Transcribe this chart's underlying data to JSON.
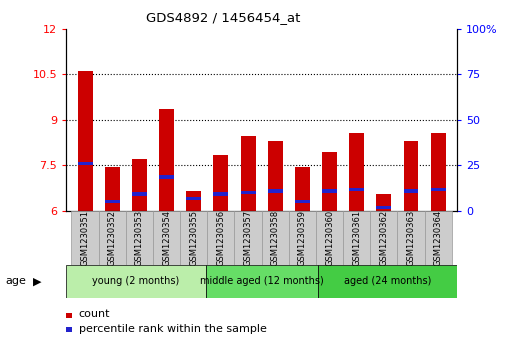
{
  "title": "GDS4892 / 1456454_at",
  "samples": [
    "GSM1230351",
    "GSM1230352",
    "GSM1230353",
    "GSM1230354",
    "GSM1230355",
    "GSM1230356",
    "GSM1230357",
    "GSM1230358",
    "GSM1230359",
    "GSM1230360",
    "GSM1230361",
    "GSM1230362",
    "GSM1230363",
    "GSM1230364"
  ],
  "count_values": [
    10.6,
    7.45,
    7.7,
    9.35,
    6.65,
    7.85,
    8.45,
    8.3,
    7.45,
    7.95,
    8.55,
    6.55,
    8.3,
    8.55
  ],
  "percentile_values": [
    7.55,
    6.3,
    6.55,
    7.1,
    6.4,
    6.55,
    6.6,
    6.65,
    6.3,
    6.65,
    6.7,
    6.1,
    6.65,
    6.7
  ],
  "ylim": [
    6,
    12
  ],
  "y2lim": [
    0,
    100
  ],
  "yticks": [
    6,
    7.5,
    9,
    10.5,
    12
  ],
  "y2ticks": [
    0,
    25,
    50,
    75,
    100
  ],
  "bar_color": "#cc0000",
  "blue_color": "#2222cc",
  "groups": [
    {
      "label": "young (2 months)",
      "start": 0,
      "end": 5,
      "color": "#bbeeaa"
    },
    {
      "label": "middle aged (12 months)",
      "start": 5,
      "end": 9,
      "color": "#66dd66"
    },
    {
      "label": "aged (24 months)",
      "start": 9,
      "end": 14,
      "color": "#44cc44"
    }
  ],
  "bar_width": 0.55,
  "legend_count_label": "count",
  "legend_percentile_label": "percentile rank within the sample",
  "grid_yticks": [
    7.5,
    9,
    10.5
  ],
  "blue_bar_height": 0.12
}
